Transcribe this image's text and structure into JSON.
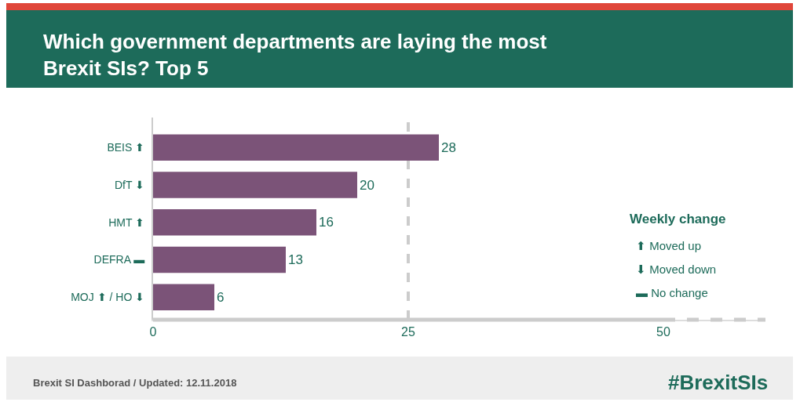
{
  "chart_data": {
    "type": "bar",
    "orientation": "horizontal",
    "title": "Which government departments are laying the most Brexit SIs? Top 5",
    "categories": [
      "BEIS ⬆",
      "DfT ⬇",
      "HMT ⬆",
      "DEFRA ▬",
      "MOJ ⬆ / HO ⬇"
    ],
    "values": [
      28,
      20,
      16,
      13,
      6
    ],
    "color": "#7b5378",
    "data_labels": true,
    "xlim": [
      0,
      60
    ],
    "xticks": [
      0,
      25,
      50
    ],
    "grid": false,
    "legend": false,
    "ref_lines": [
      {
        "axis": "x",
        "value": 25,
        "color": "#cccccc",
        "line_style": "dashed"
      }
    ],
    "annotations": [
      "Weekly change",
      "⬆ Moved up",
      "⬇ Moved down",
      "▬ No change",
      "Brexit SI Dashborad / Updated: 12.11.2018",
      "#BrexitSIs"
    ]
  }
}
